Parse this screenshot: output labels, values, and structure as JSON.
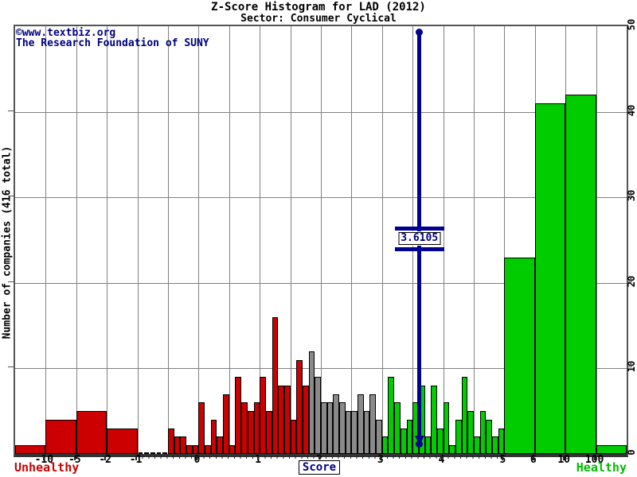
{
  "header": {
    "title": "Z-Score Histogram for LAD (2012)",
    "subtitle": "Sector: Consumer Cyclical"
  },
  "watermark": {
    "line1": "©www.textbiz.org",
    "line2": "The Research Foundation of SUNY"
  },
  "axes": {
    "y_label": "Number of companies (416 total)",
    "x_label": "Score",
    "y_ticks": [
      0,
      10,
      20,
      30,
      40,
      50
    ],
    "y_max": 50,
    "x_tick_labels": [
      "-10",
      "-5",
      "-2",
      "-1",
      "0",
      "1",
      "2",
      "3",
      "4",
      "5",
      "6",
      "10",
      "100"
    ],
    "x_tick_values": [
      -10,
      -5,
      -2,
      -1,
      0,
      1,
      2,
      3,
      4,
      5,
      6,
      10,
      100
    ],
    "x_tick_units": [
      1,
      2,
      3,
      4,
      6,
      8,
      10,
      12,
      14,
      16,
      17,
      18,
      19
    ],
    "total_units": 20
  },
  "zone_labels": {
    "unhealthy": "Unhealthy",
    "healthy": "Healthy"
  },
  "marker": {
    "value": 3.6105,
    "label": "3.6105"
  },
  "colors": {
    "distress": "#cc0000",
    "grey": "#8a8a8a",
    "safe": "#00cc00",
    "marker_blue": "#000090",
    "navy_text": "#000080",
    "gridline": "#808080"
  },
  "chart_data": {
    "type": "bar",
    "title": "Z-Score Histogram for LAD (2012)",
    "subtitle": "Sector: Consumer Cyclical",
    "xlabel": "Score",
    "ylabel": "Number of companies (416 total)",
    "total_companies": 416,
    "ylim": [
      0,
      50
    ],
    "grid": true,
    "legend": "none",
    "marker_z_score": 3.6105,
    "zone_rules": {
      "distress_below": 1.8,
      "grey_below": 3.0,
      "safe_at_or_above": 3.0
    },
    "bins_small": {
      "start": -1.0,
      "step": 0.1,
      "counts": [
        0,
        0,
        0,
        0,
        0,
        3,
        2,
        2,
        1,
        1,
        6,
        1,
        4,
        2,
        7,
        1,
        9,
        6,
        5,
        6,
        9,
        5,
        16,
        8,
        8,
        4,
        11,
        8,
        12,
        9,
        6,
        6,
        7,
        6,
        5,
        5,
        7,
        5,
        7,
        4,
        2,
        9,
        6,
        3,
        4,
        6,
        8,
        2,
        8,
        3,
        6,
        1,
        4,
        9,
        5,
        2,
        5,
        4,
        2,
        3
      ]
    },
    "bins_wide": [
      {
        "from": "min",
        "to": -10,
        "count": 1
      },
      {
        "from": -10,
        "to": -5,
        "count": 4
      },
      {
        "from": -5,
        "to": -2,
        "count": 5
      },
      {
        "from": -2,
        "to": -1,
        "count": 3
      },
      {
        "from": 5,
        "to": 6,
        "count": 23
      },
      {
        "from": 6,
        "to": 10,
        "count": 41
      },
      {
        "from": 10,
        "to": 100,
        "count": 42
      },
      {
        "from": 100,
        "to": "max",
        "count": 1
      }
    ]
  }
}
